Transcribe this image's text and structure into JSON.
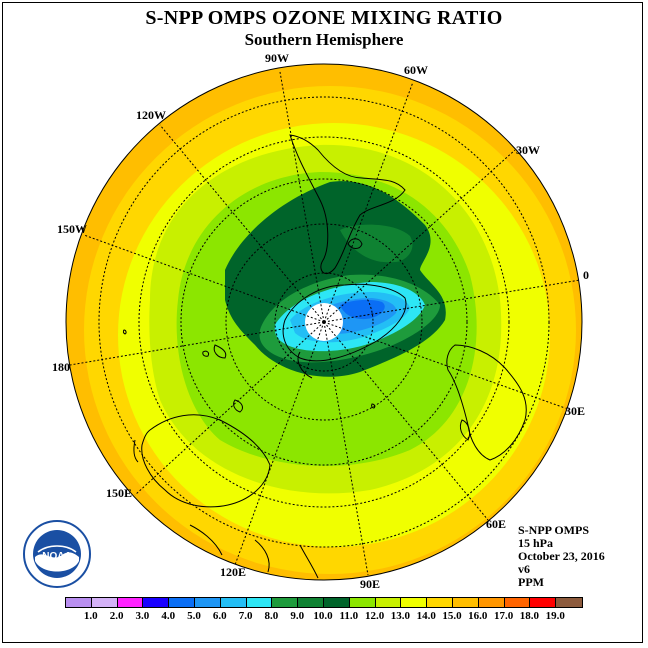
{
  "title": "S-NPP OMPS OZONE MIXING RATIO",
  "subtitle": "Southern Hemisphere",
  "longitude_labels": {
    "lon_90w": "90W",
    "lon_60w": "60W",
    "lon_30w": "30W",
    "lon_0": "0",
    "lon_30e": "30E",
    "lon_60e": "60E",
    "lon_90e": "90E",
    "lon_120e": "120E",
    "lon_150e": "150E",
    "lon_180": "180",
    "lon_150w": "150W",
    "lon_120w": "120W"
  },
  "info": {
    "instrument": "S-NPP OMPS",
    "level": "15 hPa",
    "date": "October 23, 2016",
    "version": "v6",
    "units": "PPM"
  },
  "logo": {
    "text": "NOAA",
    "icon": "noaa-logo-icon",
    "color": "#1a4fa3"
  },
  "colorbar": {
    "colors": [
      "#b98ff0",
      "#d4b2f7",
      "#ff22ff",
      "#1900ff",
      "#0a6ef5",
      "#1e96f5",
      "#23bef5",
      "#2de6f5",
      "#1e9b3c",
      "#0f8232",
      "#00642a",
      "#8ce600",
      "#c8f000",
      "#f0ff00",
      "#ffd700",
      "#ffbe00",
      "#ff9600",
      "#ff6400",
      "#ff0000",
      "#8c5a3c"
    ],
    "ticks": [
      "1.0",
      "2.0",
      "3.0",
      "4.0",
      "5.0",
      "6.0",
      "7.0",
      "8.0",
      "9.0",
      "10.0",
      "11.0",
      "12.0",
      "13.0",
      "14.0",
      "15.0",
      "16.0",
      "17.0",
      "18.0",
      "19.0"
    ]
  }
}
